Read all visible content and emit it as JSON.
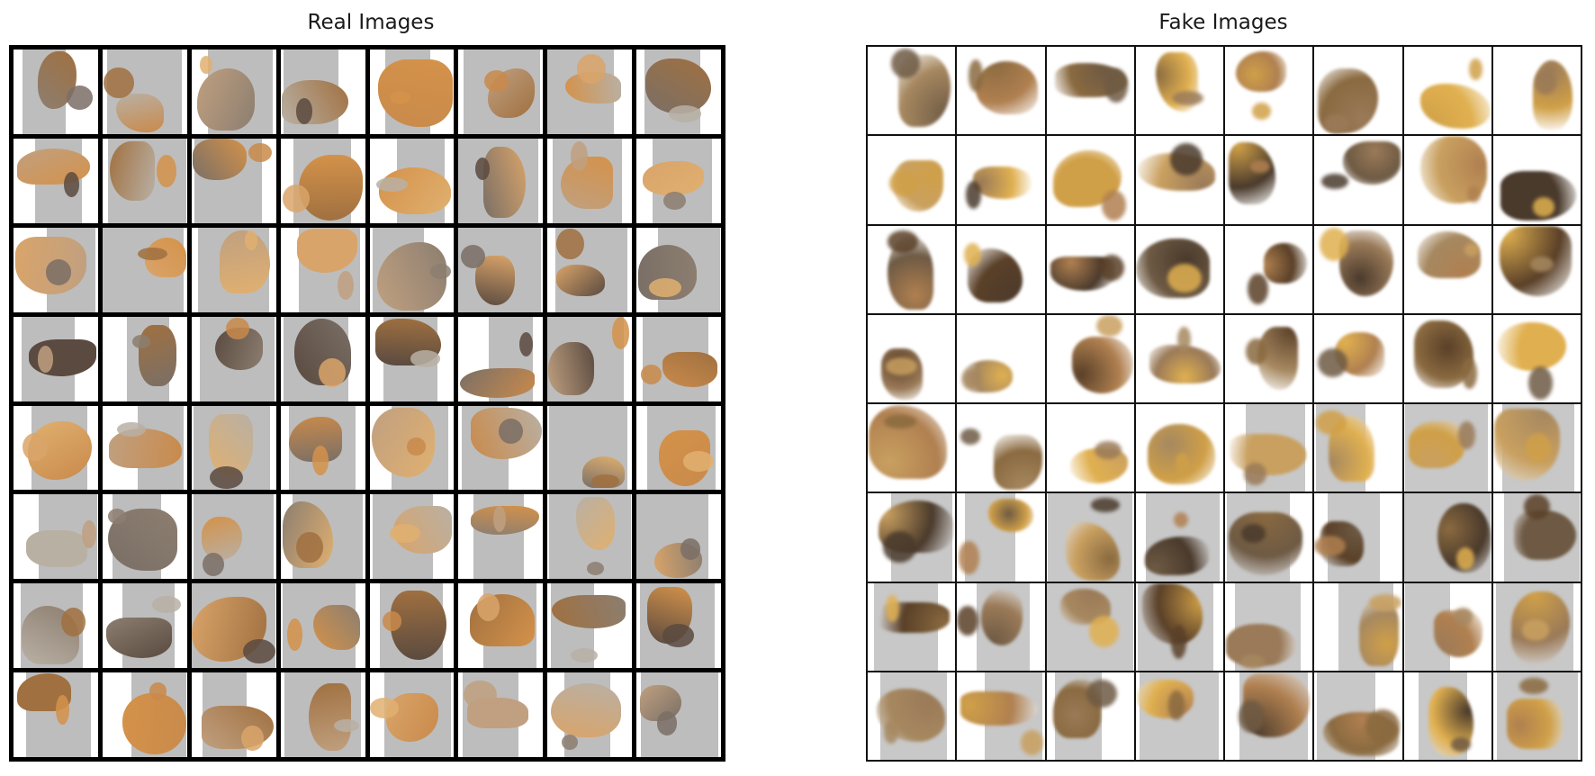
{
  "panels": {
    "real": {
      "title": "Real Images"
    },
    "fake": {
      "title": "Fake Images"
    }
  },
  "grid": {
    "rows": 8,
    "cols": 8
  },
  "palette": {
    "real": [
      "#c98a4b",
      "#7a6f66",
      "#d9a46a",
      "#a07040",
      "#b9b0a4",
      "#e0b070",
      "#5a4a40",
      "#c0a080",
      "#d4924a",
      "#8c7e70"
    ],
    "fake": [
      "#8a6a40",
      "#c9a060",
      "#5a4028",
      "#b08050",
      "#d0a048",
      "#6e5a44",
      "#a68860",
      "#e0b050",
      "#4a3a2c",
      "#9a7a58"
    ],
    "gray_backgrounds": [
      "#bdbdbd",
      "#d2d2d2",
      "#e6e6e6",
      "#ffffff",
      "#c8c8c8"
    ]
  }
}
